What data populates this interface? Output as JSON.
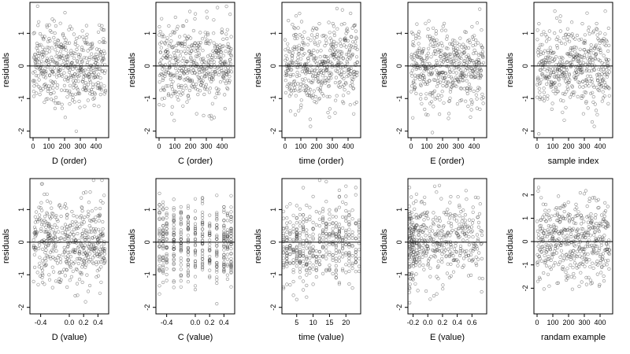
{
  "chart_data": [
    {
      "type": "scatter",
      "xlabel": "D (order)",
      "ylabel": "residuals",
      "xlim": [
        -20,
        480
      ],
      "ylim": [
        -2.2,
        1.95
      ],
      "xticks": [
        {
          "v": 0,
          "l": "0"
        },
        {
          "v": 100,
          "l": "100"
        },
        {
          "v": 200,
          "l": "200"
        },
        {
          "v": 300,
          "l": "300"
        },
        {
          "v": 400,
          "l": "400"
        }
      ],
      "yticks": [
        {
          "v": -2,
          "l": "-2"
        },
        {
          "v": -1,
          "l": "-1"
        },
        {
          "v": 0,
          "l": "0"
        },
        {
          "v": 1,
          "l": "1"
        }
      ],
      "hline": 0,
      "n_points": 460,
      "residual_range": [
        -2.1,
        1.9
      ],
      "x_distribution": "order",
      "x_range": [
        0,
        460
      ]
    },
    {
      "type": "scatter",
      "xlabel": "C (order)",
      "ylabel": "residuals",
      "xlim": [
        -20,
        480
      ],
      "ylim": [
        -2.2,
        1.95
      ],
      "xticks": [
        {
          "v": 0,
          "l": "0"
        },
        {
          "v": 100,
          "l": "100"
        },
        {
          "v": 200,
          "l": "200"
        },
        {
          "v": 300,
          "l": "300"
        },
        {
          "v": 400,
          "l": "400"
        }
      ],
      "yticks": [
        {
          "v": -2,
          "l": "-2"
        },
        {
          "v": -1,
          "l": "-1"
        },
        {
          "v": 0,
          "l": "0"
        },
        {
          "v": 1,
          "l": "1"
        }
      ],
      "hline": 0,
      "n_points": 460,
      "residual_range": [
        -2.1,
        1.9
      ],
      "x_distribution": "order",
      "x_range": [
        0,
        460
      ]
    },
    {
      "type": "scatter",
      "xlabel": "time (order)",
      "ylabel": "residuals",
      "xlim": [
        -20,
        480
      ],
      "ylim": [
        -2.2,
        1.95
      ],
      "xticks": [
        {
          "v": 0,
          "l": "0"
        },
        {
          "v": 100,
          "l": "100"
        },
        {
          "v": 200,
          "l": "200"
        },
        {
          "v": 300,
          "l": "300"
        },
        {
          "v": 400,
          "l": "400"
        }
      ],
      "yticks": [
        {
          "v": -2,
          "l": "-2"
        },
        {
          "v": -1,
          "l": "-1"
        },
        {
          "v": 0,
          "l": "0"
        },
        {
          "v": 1,
          "l": "1"
        }
      ],
      "hline": 0,
      "n_points": 460,
      "residual_range": [
        -2.1,
        1.9
      ],
      "x_distribution": "order",
      "x_range": [
        0,
        460
      ]
    },
    {
      "type": "scatter",
      "xlabel": "E (order)",
      "ylabel": "residuals",
      "xlim": [
        -20,
        480
      ],
      "ylim": [
        -2.2,
        1.95
      ],
      "xticks": [
        {
          "v": 0,
          "l": "0"
        },
        {
          "v": 100,
          "l": "100"
        },
        {
          "v": 200,
          "l": "200"
        },
        {
          "v": 300,
          "l": "300"
        },
        {
          "v": 400,
          "l": "400"
        }
      ],
      "yticks": [
        {
          "v": -2,
          "l": "-2"
        },
        {
          "v": -1,
          "l": "-1"
        },
        {
          "v": 0,
          "l": "0"
        },
        {
          "v": 1,
          "l": "1"
        }
      ],
      "hline": 0,
      "n_points": 460,
      "residual_range": [
        -2.1,
        1.9
      ],
      "x_distribution": "order",
      "x_range": [
        0,
        460
      ]
    },
    {
      "type": "scatter",
      "xlabel": "sample index",
      "ylabel": "residuals",
      "xlim": [
        -20,
        480
      ],
      "ylim": [
        -2.2,
        1.95
      ],
      "xticks": [
        {
          "v": 0,
          "l": "0"
        },
        {
          "v": 100,
          "l": "100"
        },
        {
          "v": 200,
          "l": "200"
        },
        {
          "v": 300,
          "l": "300"
        },
        {
          "v": 400,
          "l": "400"
        }
      ],
      "yticks": [
        {
          "v": -2,
          "l": "-2"
        },
        {
          "v": -1,
          "l": "-1"
        },
        {
          "v": 0,
          "l": "0"
        },
        {
          "v": 1,
          "l": "1"
        }
      ],
      "hline": 0,
      "n_points": 460,
      "residual_range": [
        -2.1,
        1.9
      ],
      "x_distribution": "order",
      "x_range": [
        0,
        460
      ]
    },
    {
      "type": "scatter",
      "xlabel": "D (value)",
      "ylabel": "residuals",
      "xlim": [
        -0.55,
        0.55
      ],
      "ylim": [
        -2.2,
        1.95
      ],
      "xticks": [
        {
          "v": -0.4,
          "l": "-0.4"
        },
        {
          "v": 0.0,
          "l": "0.0"
        },
        {
          "v": 0.2,
          "l": "0.2"
        },
        {
          "v": 0.4,
          "l": "0.4"
        }
      ],
      "yticks": [
        {
          "v": -2,
          "l": "-2"
        },
        {
          "v": -1,
          "l": "-1"
        },
        {
          "v": 0,
          "l": "0"
        },
        {
          "v": 1,
          "l": "1"
        }
      ],
      "hline": 0,
      "n_points": 460,
      "residual_range": [
        -2.1,
        1.9
      ],
      "x_distribution": "uniform",
      "x_range": [
        -0.5,
        0.5
      ]
    },
    {
      "type": "scatter",
      "xlabel": "C (value)",
      "ylabel": "residuals",
      "xlim": [
        -0.55,
        0.55
      ],
      "ylim": [
        -2.2,
        1.95
      ],
      "xticks": [
        {
          "v": -0.4,
          "l": "-0.4"
        },
        {
          "v": 0.0,
          "l": "0.0"
        },
        {
          "v": 0.2,
          "l": "0.2"
        },
        {
          "v": 0.4,
          "l": "0.4"
        }
      ],
      "yticks": [
        {
          "v": -2,
          "l": "-2"
        },
        {
          "v": -1,
          "l": "-1"
        },
        {
          "v": 0,
          "l": "0"
        },
        {
          "v": 1,
          "l": "1"
        }
      ],
      "hline": 0,
      "n_points": 460,
      "residual_range": [
        -2.1,
        1.9
      ],
      "x_distribution": "columns",
      "x_range": [
        -0.5,
        0.5
      ],
      "x_columns": [
        -0.5,
        -0.45,
        -0.4,
        -0.3,
        -0.2,
        -0.1,
        0.0,
        0.1,
        0.2,
        0.3,
        0.4,
        0.45,
        0.5
      ]
    },
    {
      "type": "scatter",
      "xlabel": "time (value)",
      "ylabel": "residuals",
      "xlim": [
        0.5,
        24.5
      ],
      "ylim": [
        -2.2,
        1.95
      ],
      "xticks": [
        {
          "v": 5,
          "l": "5"
        },
        {
          "v": 10,
          "l": "10"
        },
        {
          "v": 15,
          "l": "15"
        },
        {
          "v": 20,
          "l": "20"
        }
      ],
      "yticks": [
        {
          "v": -2,
          "l": "-2"
        },
        {
          "v": -1,
          "l": "-1"
        },
        {
          "v": 0,
          "l": "0"
        },
        {
          "v": 1,
          "l": "1"
        }
      ],
      "hline": 0,
      "n_points": 460,
      "residual_range": [
        -2.1,
        1.9
      ],
      "x_distribution": "columns",
      "x_range": [
        1,
        24
      ],
      "x_columns": [
        1,
        2,
        3,
        4,
        5,
        6,
        7,
        8,
        9,
        10,
        11,
        12,
        13,
        14,
        15,
        16,
        17,
        18,
        19,
        20,
        21,
        22,
        23,
        24
      ]
    },
    {
      "type": "scatter",
      "xlabel": "E (value)",
      "ylabel": "residuals",
      "xlim": [
        -0.27,
        0.8
      ],
      "ylim": [
        -2.2,
        1.95
      ],
      "xticks": [
        {
          "v": -0.2,
          "l": "-0.2"
        },
        {
          "v": 0.0,
          "l": "0.0"
        },
        {
          "v": 0.2,
          "l": "0.2"
        },
        {
          "v": 0.4,
          "l": "0.4"
        },
        {
          "v": 0.6,
          "l": "0.6"
        }
      ],
      "yticks": [
        {
          "v": -2,
          "l": "-2"
        },
        {
          "v": -1,
          "l": "-1"
        },
        {
          "v": 0,
          "l": "0"
        },
        {
          "v": 1,
          "l": "1"
        }
      ],
      "hline": 0,
      "n_points": 460,
      "residual_range": [
        -2.1,
        1.9
      ],
      "x_distribution": "skewed",
      "x_range": [
        -0.25,
        0.75
      ]
    },
    {
      "type": "scatter",
      "xlabel": "randam example",
      "ylabel": "residuals",
      "xlim": [
        -20,
        480
      ],
      "ylim": [
        -3.1,
        2.7
      ],
      "xticks": [
        {
          "v": 0,
          "l": "0"
        },
        {
          "v": 100,
          "l": "100"
        },
        {
          "v": 200,
          "l": "200"
        },
        {
          "v": 300,
          "l": "300"
        },
        {
          "v": 400,
          "l": "400"
        }
      ],
      "yticks": [
        {
          "v": -2,
          "l": "-2"
        },
        {
          "v": -1,
          "l": "-1"
        },
        {
          "v": 0,
          "l": "0"
        },
        {
          "v": 1,
          "l": "1"
        },
        {
          "v": 2,
          "l": "2"
        }
      ],
      "hline": 0,
      "n_points": 460,
      "residual_range": [
        -2.9,
        2.6
      ],
      "x_distribution": "order",
      "x_range": [
        0,
        460
      ]
    }
  ]
}
